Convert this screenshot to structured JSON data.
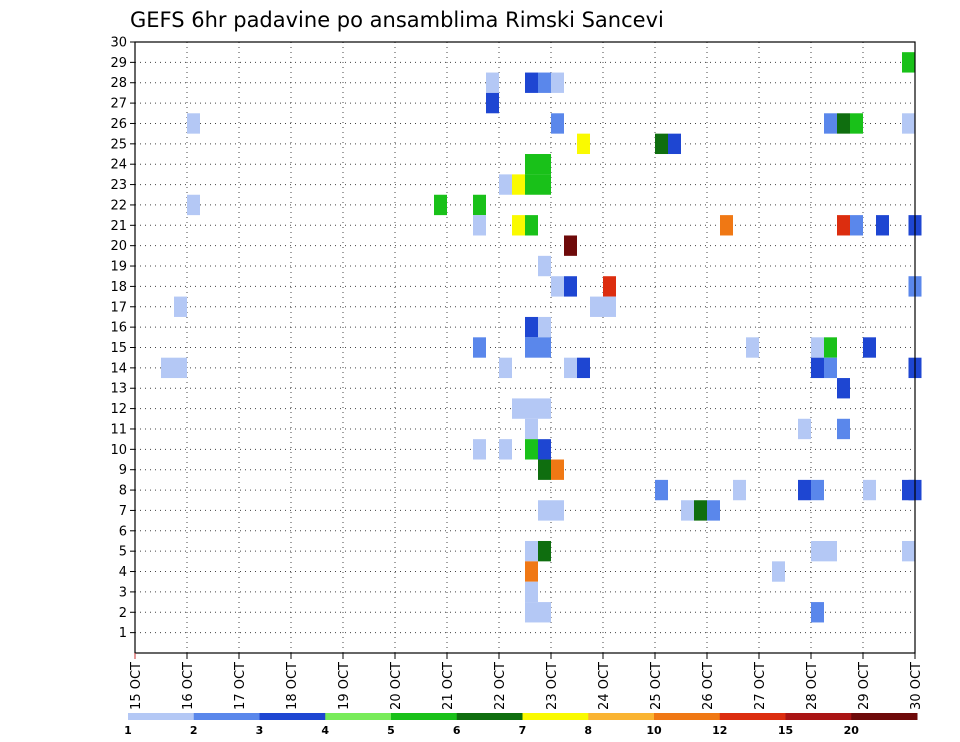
{
  "chart_data": {
    "type": "heatmap",
    "title": "GEFS 6hr padavine po ansamblima Rimski Sancevi",
    "xlabel": "",
    "ylabel": "",
    "x_tick_labels": [
      "15 OCT",
      "16 OCT",
      "17 OCT",
      "18 OCT",
      "19 OCT",
      "20 OCT",
      "21 OCT",
      "22 OCT",
      "23 OCT",
      "24 OCT",
      "25 OCT",
      "26 OCT",
      "27 OCT",
      "28 OCT",
      "29 OCT",
      "30 OCT"
    ],
    "x_range_days": [
      15,
      30
    ],
    "y_tick_labels": [
      "1",
      "2",
      "3",
      "4",
      "5",
      "6",
      "7",
      "8",
      "9",
      "10",
      "11",
      "12",
      "13",
      "14",
      "15",
      "16",
      "17",
      "18",
      "19",
      "20",
      "21",
      "22",
      "23",
      "24",
      "25",
      "26",
      "27",
      "28",
      "29",
      "30"
    ],
    "y_range": [
      0,
      30
    ],
    "grid": true,
    "colorbar": {
      "labels": [
        "1",
        "2",
        "3",
        "4",
        "5",
        "6",
        "7",
        "8",
        "10",
        "12",
        "15",
        "20"
      ],
      "colors": [
        "#b4c8f5",
        "#5a87eb",
        "#1e46d2",
        "#78ec5a",
        "#19c119",
        "#0f6e0f",
        "#fafa00",
        "#fab432",
        "#f07814",
        "#dc2d0f",
        "#aa1414",
        "#6e0a0a"
      ]
    },
    "cells": [
      {
        "x": 29.75,
        "y": 29,
        "level": 5
      },
      {
        "x": 21.75,
        "y": 28,
        "level": 1
      },
      {
        "x": 22.5,
        "y": 28,
        "level": 3
      },
      {
        "x": 22.75,
        "y": 28,
        "level": 2
      },
      {
        "x": 23.0,
        "y": 28,
        "level": 1
      },
      {
        "x": 21.75,
        "y": 27,
        "level": 3
      },
      {
        "x": 16.0,
        "y": 26,
        "level": 1
      },
      {
        "x": 23.0,
        "y": 26,
        "level": 2
      },
      {
        "x": 28.25,
        "y": 26,
        "level": 2
      },
      {
        "x": 28.5,
        "y": 26,
        "level": 6
      },
      {
        "x": 28.75,
        "y": 26,
        "level": 5
      },
      {
        "x": 29.75,
        "y": 26,
        "level": 1
      },
      {
        "x": 23.5,
        "y": 25,
        "level": 7
      },
      {
        "x": 25.0,
        "y": 25,
        "level": 6
      },
      {
        "x": 25.25,
        "y": 25,
        "level": 3
      },
      {
        "x": 22.5,
        "y": 24,
        "level": 5
      },
      {
        "x": 22.75,
        "y": 24,
        "level": 5
      },
      {
        "x": 22.0,
        "y": 23,
        "level": 1
      },
      {
        "x": 22.25,
        "y": 23,
        "level": 7
      },
      {
        "x": 22.5,
        "y": 23,
        "level": 5
      },
      {
        "x": 22.75,
        "y": 23,
        "level": 5
      },
      {
        "x": 16.0,
        "y": 22,
        "level": 1
      },
      {
        "x": 20.75,
        "y": 22,
        "level": 5
      },
      {
        "x": 21.5,
        "y": 22,
        "level": 5
      },
      {
        "x": 21.5,
        "y": 21,
        "level": 1
      },
      {
        "x": 22.25,
        "y": 21,
        "level": 7
      },
      {
        "x": 22.5,
        "y": 21,
        "level": 5
      },
      {
        "x": 26.25,
        "y": 21,
        "level": 9
      },
      {
        "x": 28.5,
        "y": 21,
        "level": 10
      },
      {
        "x": 28.75,
        "y": 21,
        "level": 2
      },
      {
        "x": 29.25,
        "y": 21,
        "level": 3
      },
      {
        "x": 29.95,
        "y": 21,
        "level": 3
      },
      {
        "x": 23.25,
        "y": 20,
        "level": 12
      },
      {
        "x": 22.75,
        "y": 19,
        "level": 1
      },
      {
        "x": 23.0,
        "y": 18,
        "level": 1
      },
      {
        "x": 23.25,
        "y": 18,
        "level": 3
      },
      {
        "x": 24.0,
        "y": 18,
        "level": 10
      },
      {
        "x": 29.95,
        "y": 18,
        "level": 2
      },
      {
        "x": 15.75,
        "y": 17,
        "level": 1
      },
      {
        "x": 23.75,
        "y": 17,
        "level": 1
      },
      {
        "x": 24.0,
        "y": 17,
        "level": 1
      },
      {
        "x": 22.5,
        "y": 16,
        "level": 3
      },
      {
        "x": 22.75,
        "y": 16,
        "level": 1
      },
      {
        "x": 21.5,
        "y": 15,
        "level": 2
      },
      {
        "x": 22.5,
        "y": 15,
        "level": 2
      },
      {
        "x": 22.75,
        "y": 15,
        "level": 2
      },
      {
        "x": 26.75,
        "y": 15,
        "level": 1
      },
      {
        "x": 28.0,
        "y": 15,
        "level": 1
      },
      {
        "x": 28.25,
        "y": 15,
        "level": 5
      },
      {
        "x": 29.0,
        "y": 15,
        "level": 3
      },
      {
        "x": 15.5,
        "y": 14,
        "level": 1
      },
      {
        "x": 15.75,
        "y": 14,
        "level": 1
      },
      {
        "x": 22.0,
        "y": 14,
        "level": 1
      },
      {
        "x": 23.25,
        "y": 14,
        "level": 1
      },
      {
        "x": 23.5,
        "y": 14,
        "level": 3
      },
      {
        "x": 28.0,
        "y": 14,
        "level": 3
      },
      {
        "x": 28.25,
        "y": 14,
        "level": 2
      },
      {
        "x": 29.95,
        "y": 14,
        "level": 3
      },
      {
        "x": 28.5,
        "y": 13,
        "level": 3
      },
      {
        "x": 22.25,
        "y": 12,
        "level": 1
      },
      {
        "x": 22.5,
        "y": 12,
        "level": 1
      },
      {
        "x": 22.75,
        "y": 12,
        "level": 1
      },
      {
        "x": 22.5,
        "y": 11,
        "level": 1
      },
      {
        "x": 27.75,
        "y": 11,
        "level": 1
      },
      {
        "x": 28.5,
        "y": 11,
        "level": 2
      },
      {
        "x": 21.5,
        "y": 10,
        "level": 1
      },
      {
        "x": 22.0,
        "y": 10,
        "level": 1
      },
      {
        "x": 22.5,
        "y": 10,
        "level": 5
      },
      {
        "x": 22.75,
        "y": 10,
        "level": 3
      },
      {
        "x": 22.75,
        "y": 9,
        "level": 6
      },
      {
        "x": 23.0,
        "y": 9,
        "level": 9
      },
      {
        "x": 25.0,
        "y": 8,
        "level": 2
      },
      {
        "x": 26.5,
        "y": 8,
        "level": 1
      },
      {
        "x": 27.75,
        "y": 8,
        "level": 3
      },
      {
        "x": 28.0,
        "y": 8,
        "level": 2
      },
      {
        "x": 29.0,
        "y": 8,
        "level": 1
      },
      {
        "x": 29.75,
        "y": 8,
        "level": 3
      },
      {
        "x": 29.95,
        "y": 8,
        "level": 3
      },
      {
        "x": 22.75,
        "y": 7,
        "level": 1
      },
      {
        "x": 23.0,
        "y": 7,
        "level": 1
      },
      {
        "x": 25.5,
        "y": 7,
        "level": 1
      },
      {
        "x": 25.75,
        "y": 7,
        "level": 6
      },
      {
        "x": 26.0,
        "y": 7,
        "level": 2
      },
      {
        "x": 22.5,
        "y": 5,
        "level": 1
      },
      {
        "x": 22.75,
        "y": 5,
        "level": 6
      },
      {
        "x": 28.0,
        "y": 5,
        "level": 1
      },
      {
        "x": 28.25,
        "y": 5,
        "level": 1
      },
      {
        "x": 29.75,
        "y": 5,
        "level": 1
      },
      {
        "x": 22.5,
        "y": 4,
        "level": 9
      },
      {
        "x": 27.25,
        "y": 4,
        "level": 1
      },
      {
        "x": 22.5,
        "y": 3,
        "level": 1
      },
      {
        "x": 22.5,
        "y": 2,
        "level": 1
      },
      {
        "x": 22.75,
        "y": 2,
        "level": 1
      },
      {
        "x": 28.0,
        "y": 2,
        "level": 2
      }
    ]
  }
}
